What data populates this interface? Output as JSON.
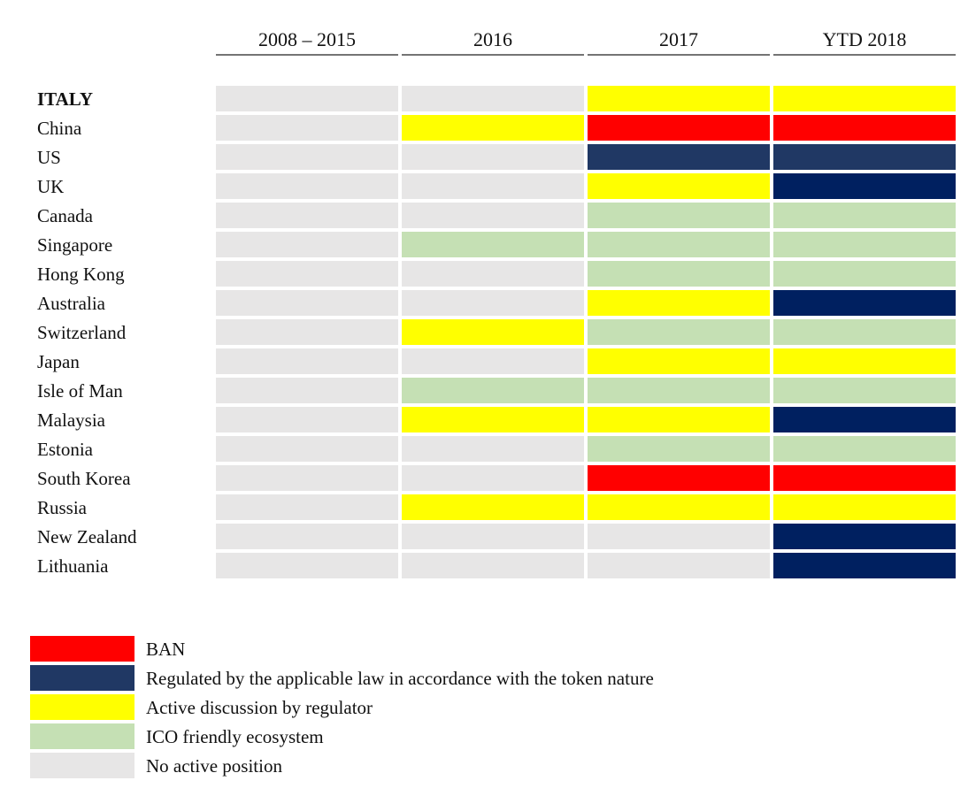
{
  "chart_data": {
    "type": "heatmap",
    "columns": [
      "2008 – 2015",
      "2016",
      "2017",
      "YTD 2018"
    ],
    "rows": [
      {
        "label": "ITALY",
        "bold": true,
        "cells": [
          "none",
          "none",
          "discussion",
          "discussion"
        ]
      },
      {
        "label": "China",
        "cells": [
          "none",
          "discussion",
          "ban",
          "ban"
        ]
      },
      {
        "label": "US",
        "cells": [
          "none",
          "none",
          "regulated",
          "regulated"
        ]
      },
      {
        "label": "UK",
        "cells": [
          "none",
          "none",
          "discussion",
          "regulated_dark"
        ]
      },
      {
        "label": "Canada",
        "cells": [
          "none",
          "none",
          "friendly",
          "friendly"
        ]
      },
      {
        "label": "Singapore",
        "cells": [
          "none",
          "friendly",
          "friendly",
          "friendly"
        ]
      },
      {
        "label": "Hong Kong",
        "cells": [
          "none",
          "none",
          "friendly",
          "friendly"
        ]
      },
      {
        "label": "Australia",
        "cells": [
          "none",
          "none",
          "discussion",
          "regulated_dark"
        ]
      },
      {
        "label": "Switzerland",
        "cells": [
          "none",
          "discussion",
          "friendly",
          "friendly"
        ]
      },
      {
        "label": "Japan",
        "cells": [
          "none",
          "none",
          "discussion",
          "discussion"
        ]
      },
      {
        "label": "Isle of Man",
        "cells": [
          "none",
          "friendly",
          "friendly",
          "friendly"
        ]
      },
      {
        "label": "Malaysia",
        "cells": [
          "none",
          "discussion",
          "discussion",
          "regulated_dark"
        ]
      },
      {
        "label": "Estonia",
        "cells": [
          "none",
          "none",
          "friendly",
          "friendly"
        ]
      },
      {
        "label": "South Korea",
        "cells": [
          "none",
          "none",
          "ban",
          "ban"
        ]
      },
      {
        "label": "Russia",
        "cells": [
          "none",
          "discussion",
          "discussion",
          "discussion"
        ]
      },
      {
        "label": "New Zealand",
        "cells": [
          "none",
          "none",
          "none",
          "regulated_dark"
        ]
      },
      {
        "label": "Lithuania",
        "cells": [
          "none",
          "none",
          "none",
          "regulated_dark"
        ]
      }
    ],
    "colors": {
      "ban": "#ff0000",
      "regulated": "#203864",
      "regulated_dark": "#002060",
      "discussion": "#ffff00",
      "friendly": "#c5e0b4",
      "none": "#e7e6e6"
    },
    "legend": [
      {
        "key": "ban",
        "label": "BAN"
      },
      {
        "key": "regulated",
        "label": "Regulated by the applicable law in accordance with the token nature"
      },
      {
        "key": "discussion",
        "label": "Active discussion by regulator"
      },
      {
        "key": "friendly",
        "label": "ICO friendly ecosystem"
      },
      {
        "key": "none",
        "label": "No active position"
      }
    ]
  }
}
